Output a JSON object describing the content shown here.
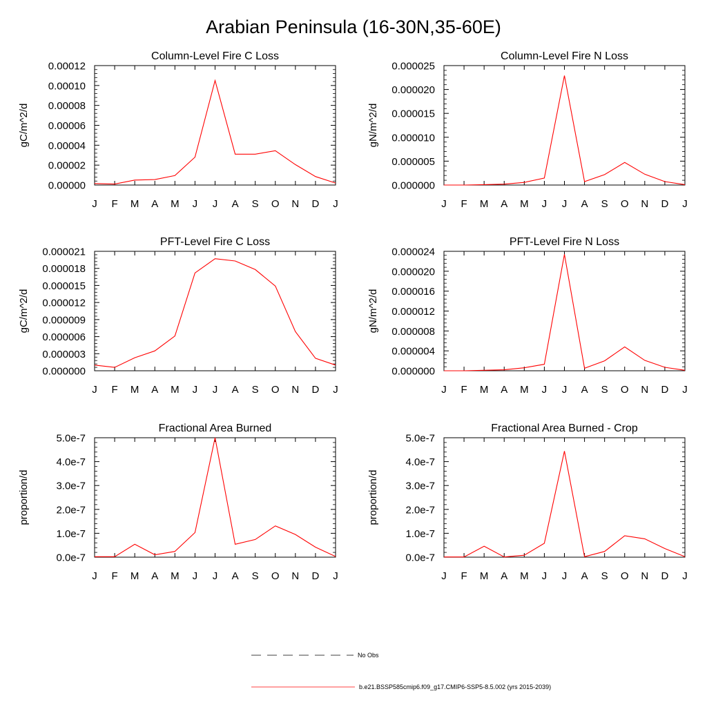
{
  "title": "Arabian Peninsula (16-30N,35-60E)",
  "legend": {
    "no_obs": "No Obs",
    "run": "b.e21.BSSP585cmip6.f09_g17.CMIP6-SSP5-8.5.002 (yrs 2015-2039)"
  },
  "series_color": "#ff0000",
  "chart_data": [
    {
      "type": "line",
      "title": "Column-Level Fire C Loss",
      "ylabel": "gC/m^2/d",
      "categories": [
        "J",
        "F",
        "M",
        "A",
        "M",
        "J",
        "J",
        "A",
        "S",
        "O",
        "N",
        "D",
        "J"
      ],
      "ylim": [
        0,
        0.00012
      ],
      "yticks": [
        "0.00000",
        "0.00002",
        "0.00004",
        "0.00006",
        "0.00008",
        "0.00010",
        "0.00012"
      ],
      "series": [
        {
          "values": [
            1.5e-06,
            1e-06,
            5e-06,
            5.5e-06,
            9.5e-06,
            2.8e-05,
            0.000105,
            3.1e-05,
            3.1e-05,
            3.45e-05,
            2.05e-05,
            8.5e-06,
            2e-06
          ]
        }
      ]
    },
    {
      "type": "line",
      "title": "Column-Level Fire N Loss",
      "ylabel": "gN/m^2/d",
      "categories": [
        "J",
        "F",
        "M",
        "A",
        "M",
        "J",
        "J",
        "A",
        "S",
        "O",
        "N",
        "D",
        "J"
      ],
      "ylim": [
        0,
        2.75e-05
      ],
      "yticks": [
        "0.000000",
        "0.000005",
        "0.000010",
        "0.000015",
        "0.000020",
        "0.000025"
      ],
      "series": [
        {
          "values": [
            0.0,
            0.0,
            1e-07,
            2e-07,
            6e-07,
            1.6e-06,
            2.52e-05,
            8e-07,
            2.4e-06,
            5.2e-06,
            2.5e-06,
            8e-07,
            1e-07
          ]
        }
      ]
    },
    {
      "type": "line",
      "title": "PFT-Level Fire C Loss",
      "ylabel": "gC/m^2/d",
      "categories": [
        "J",
        "F",
        "M",
        "A",
        "M",
        "J",
        "J",
        "A",
        "S",
        "O",
        "N",
        "D",
        "J"
      ],
      "ylim": [
        0,
        2.1e-05
      ],
      "yticks": [
        "0.000000",
        "0.000003",
        "0.000006",
        "0.000009",
        "0.000012",
        "0.000015",
        "0.000018",
        "0.000021"
      ],
      "series": [
        {
          "values": [
            1e-06,
            6e-07,
            2.3e-06,
            3.5e-06,
            6.1e-06,
            1.72e-05,
            1.97e-05,
            1.93e-05,
            1.78e-05,
            1.49e-05,
            6.9e-06,
            2.2e-06,
            1e-06
          ]
        }
      ]
    },
    {
      "type": "line",
      "title": "PFT-Level Fire N Loss",
      "ylabel": "gN/m^2/d",
      "categories": [
        "J",
        "F",
        "M",
        "A",
        "M",
        "J",
        "J",
        "A",
        "S",
        "O",
        "N",
        "D",
        "J"
      ],
      "ylim": [
        0,
        2.4e-05
      ],
      "yticks": [
        "0.000000",
        "0.000004",
        "0.000008",
        "0.000012",
        "0.000016",
        "0.000020",
        "0.000024"
      ],
      "series": [
        {
          "values": [
            0.0,
            0.0,
            1e-07,
            2e-07,
            6e-07,
            1.3e-06,
            2.34e-05,
            5e-07,
            2e-06,
            4.8e-06,
            2.1e-06,
            7e-07,
            1e-07
          ]
        }
      ]
    },
    {
      "type": "line",
      "title": "Fractional Area Burned",
      "ylabel": "proportion/d",
      "categories": [
        "J",
        "F",
        "M",
        "A",
        "M",
        "J",
        "J",
        "A",
        "S",
        "O",
        "N",
        "D",
        "J"
      ],
      "ylim": [
        0,
        5e-07
      ],
      "yticks": [
        "0.0e-7",
        "1.0e-7",
        "2.0e-7",
        "3.0e-7",
        "4.0e-7",
        "5.0e-7"
      ],
      "series": [
        {
          "values": [
            2e-09,
            2e-09,
            5.4e-08,
            1e-08,
            2.4e-08,
            1.03e-07,
            5e-07,
            5.4e-08,
            7.4e-08,
            1.31e-07,
            9.5e-08,
            4.2e-08,
            3e-09
          ]
        }
      ]
    },
    {
      "type": "line",
      "title": "Fractional Area Burned - Crop",
      "ylabel": "proportion/d",
      "categories": [
        "J",
        "F",
        "M",
        "A",
        "M",
        "J",
        "J",
        "A",
        "S",
        "O",
        "N",
        "D",
        "J"
      ],
      "ylim": [
        0,
        5e-07
      ],
      "yticks": [
        "0.0e-7",
        "1.0e-7",
        "2.0e-7",
        "3.0e-7",
        "4.0e-7",
        "5.0e-7"
      ],
      "series": [
        {
          "values": [
            1e-09,
            1e-09,
            4.6e-08,
            1e-09,
            8e-09,
            5.8e-08,
            4.44e-07,
            2e-09,
            2.4e-08,
            9e-08,
            7.7e-08,
            3.6e-08,
            2e-09
          ]
        }
      ]
    }
  ]
}
